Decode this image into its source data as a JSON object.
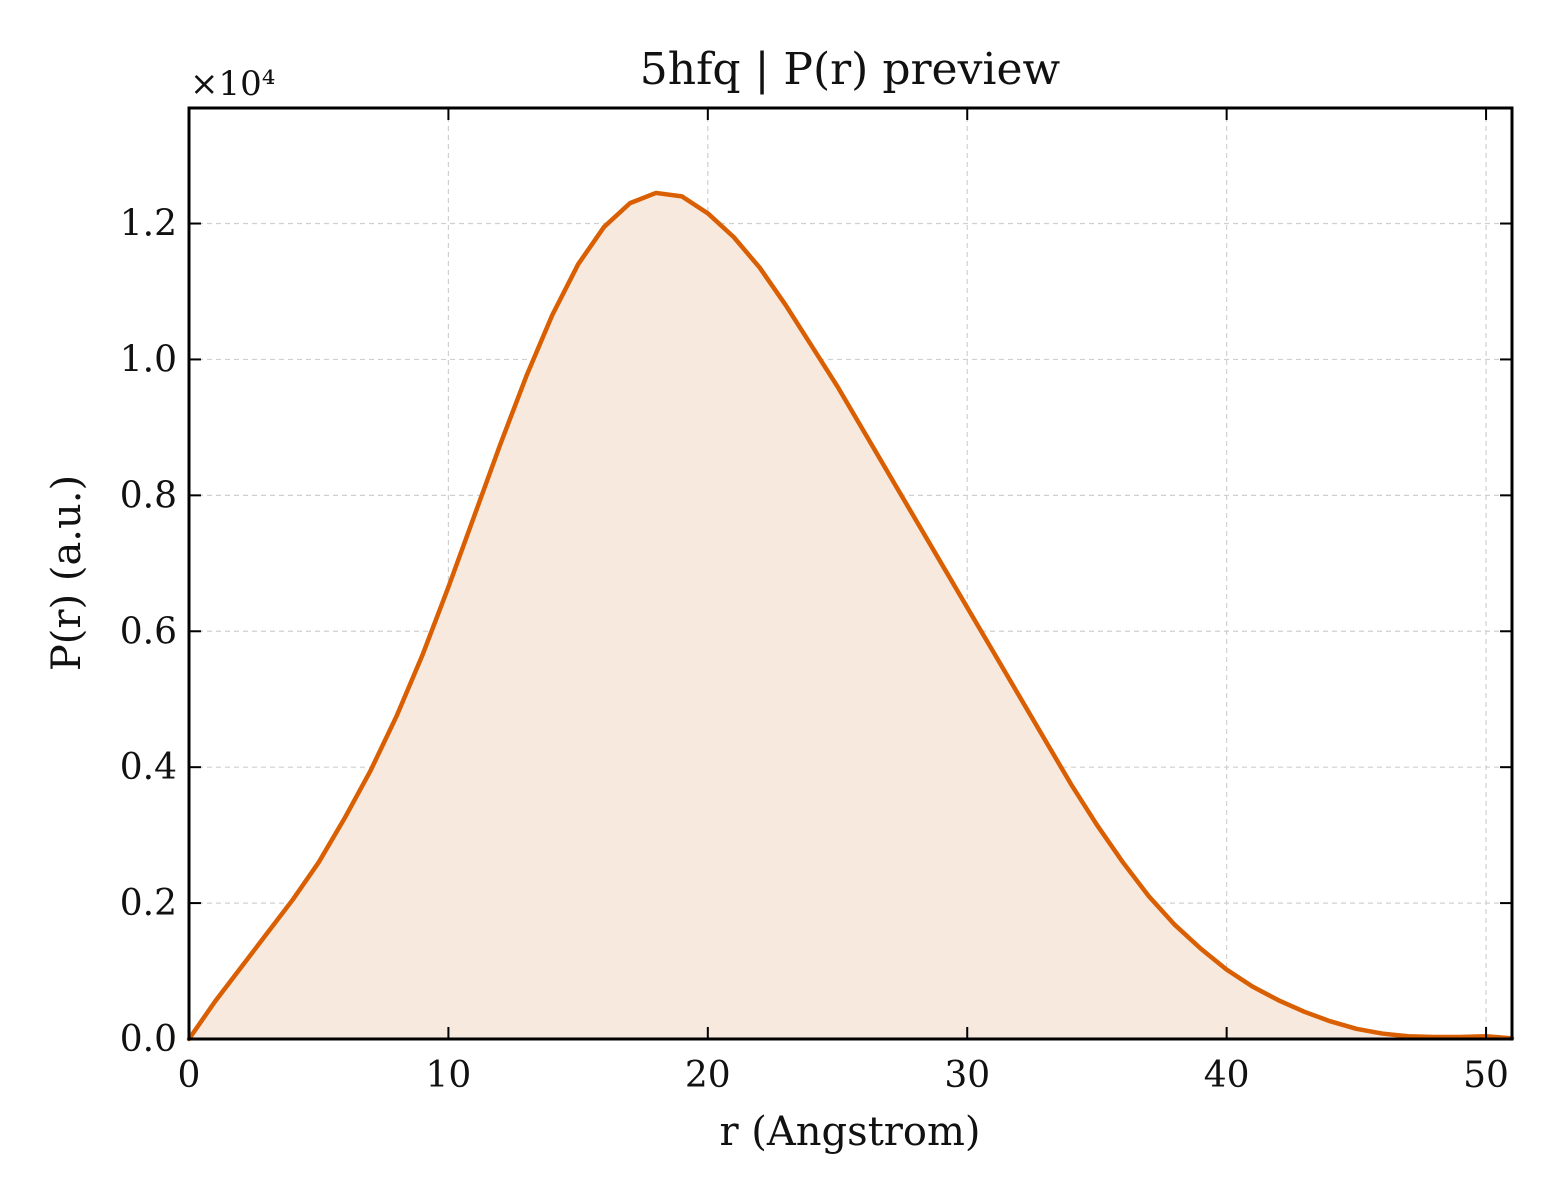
{
  "chart_data": {
    "type": "area",
    "title": "5hfq | P(r) preview",
    "xlabel": "r (Angstrom)",
    "ylabel": "P(r) (a.u.)",
    "y_offset_label": "×10⁴",
    "xlim": [
      0,
      51
    ],
    "ylim": [
      0,
      1.37
    ],
    "xticks": [
      0,
      10,
      20,
      30,
      40,
      50
    ],
    "xtick_labels": [
      "0",
      "10",
      "20",
      "30",
      "40",
      "50"
    ],
    "yticks": [
      0,
      0.2,
      0.4,
      0.6,
      0.8,
      1.0,
      1.2
    ],
    "ytick_labels": [
      "0.0",
      "0.2",
      "0.4",
      "0.6",
      "0.8",
      "1.0",
      "1.2"
    ],
    "grid": true,
    "line_color": "#d95f02",
    "fill_color": "#f8e9df",
    "series": [
      {
        "x": [
          0,
          1,
          2,
          3,
          4,
          5,
          6,
          7,
          8,
          9,
          10,
          11,
          12,
          13,
          14,
          15,
          16,
          17,
          18,
          19,
          20,
          21,
          22,
          23,
          24,
          25,
          26,
          27,
          28,
          29,
          30,
          31,
          32,
          33,
          34,
          35,
          36,
          37,
          38,
          39,
          40,
          41,
          42,
          43,
          44,
          45,
          46,
          47,
          48,
          49,
          50,
          51
        ],
        "y": [
          0,
          0.055,
          0.105,
          0.155,
          0.205,
          0.26,
          0.325,
          0.395,
          0.475,
          0.565,
          0.665,
          0.77,
          0.875,
          0.975,
          1.065,
          1.14,
          1.195,
          1.23,
          1.245,
          1.24,
          1.215,
          1.18,
          1.135,
          1.08,
          1.02,
          0.96,
          0.895,
          0.83,
          0.765,
          0.7,
          0.635,
          0.57,
          0.505,
          0.44,
          0.375,
          0.315,
          0.26,
          0.21,
          0.168,
          0.133,
          0.102,
          0.077,
          0.057,
          0.04,
          0.026,
          0.015,
          0.008,
          0.004,
          0.003,
          0.003,
          0.004,
          0.001
        ]
      }
    ]
  }
}
